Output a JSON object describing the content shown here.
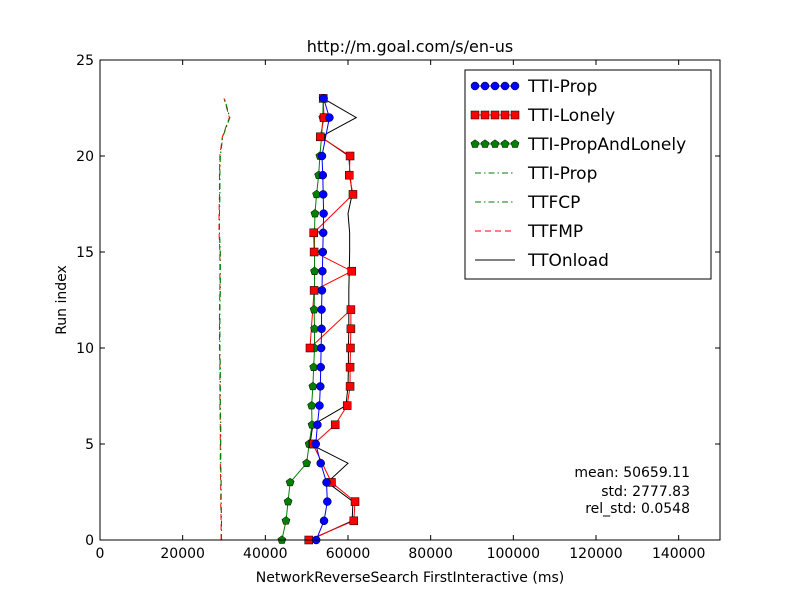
{
  "chart_data": {
    "type": "line",
    "title": "http://m.goal.com/s/en-us",
    "xlabel": "NetworkReverseSearch FirstInteractive (ms)",
    "ylabel": "Run index",
    "xlim": [
      0,
      150000
    ],
    "ylim": [
      0,
      25
    ],
    "x_ticks": [
      0,
      20000,
      40000,
      60000,
      80000,
      100000,
      120000,
      140000
    ],
    "x_tick_labels": [
      "0",
      "20000",
      "40000",
      "60000",
      "80000",
      "100000",
      "120000",
      "140000"
    ],
    "y_ticks": [
      0,
      5,
      10,
      15,
      20,
      25
    ],
    "y_tick_labels": [
      "0",
      "5",
      "10",
      "15",
      "20",
      "25"
    ],
    "grid": false,
    "legend_position": "top-right",
    "series": [
      {
        "name": "TTI-Prop",
        "color": "#0000ff",
        "marker": "circle",
        "line": "solid",
        "x": [
          52300,
          54200,
          55000,
          54800,
          53400,
          52200,
          52600,
          53100,
          53300,
          53400,
          53500,
          53600,
          53600,
          53700,
          53800,
          53900,
          54000,
          54100,
          54000,
          53900,
          53700,
          55500,
          54100
        ],
        "y": [
          0,
          1,
          2,
          3,
          4,
          5,
          6,
          7,
          8,
          9,
          10,
          11,
          12,
          13,
          14,
          15,
          16,
          17,
          18,
          19,
          20,
          22,
          23
        ]
      },
      {
        "name": "TTI-Lonely",
        "color": "#ff0000",
        "marker": "square",
        "line": "solid",
        "x": [
          50500,
          61400,
          61700,
          56000,
          51500,
          51700,
          56900,
          59800,
          60500,
          60500,
          60600,
          60700,
          60700,
          50800,
          51800,
          60900,
          51800,
          51700,
          61200,
          60300,
          60500,
          53300,
          54200,
          54000
        ],
        "y": [
          0,
          1,
          2,
          3,
          5,
          5,
          6,
          7,
          8,
          9,
          10,
          11,
          12,
          10,
          13,
          14,
          15,
          16,
          18,
          19,
          20,
          21,
          22,
          23
        ]
      },
      {
        "name": "TTI-PropAndLonely",
        "color": "#007f00",
        "marker": "pentagon",
        "line": "solid",
        "x": [
          44000,
          45000,
          45500,
          46000,
          50000,
          50600,
          51300,
          51200,
          51500,
          51700,
          51900,
          51900,
          51800,
          51900,
          51900,
          51900,
          51900,
          52000,
          52400,
          52900,
          53200,
          53600,
          53900,
          54000
        ],
        "y": [
          0,
          1,
          2,
          3,
          4,
          5,
          6,
          7,
          8,
          9,
          10,
          11,
          12,
          13,
          14,
          15,
          16,
          17,
          18,
          19,
          20,
          21,
          22,
          23
        ]
      },
      {
        "name": "TTI-Prop",
        "color": "#007f00",
        "marker": "none",
        "line": "dashdot",
        "x": [
          29400,
          29400,
          29300,
          29300,
          29200,
          29200,
          29200,
          29100,
          29100,
          29100,
          29000,
          29000,
          29000,
          29100,
          29100,
          29100,
          28900,
          28900,
          29000,
          29000,
          29100,
          29700,
          31400,
          30100
        ],
        "y": [
          0,
          1,
          2,
          3,
          4,
          5,
          6,
          7,
          8,
          9,
          10,
          11,
          12,
          13,
          14,
          15,
          16,
          17,
          18,
          19,
          20,
          21,
          22,
          23
        ]
      },
      {
        "name": "TTFCP",
        "color": "#007f00",
        "marker": "none",
        "line": "dashdot",
        "x": [
          29400,
          29400,
          29300,
          29300,
          29200,
          29200,
          29200,
          29100,
          29100,
          29100,
          29000,
          29000,
          29000,
          29100,
          29100,
          29100,
          28900,
          28900,
          29000,
          29000,
          29100,
          29700,
          31400,
          30100
        ],
        "y": [
          0,
          1,
          2,
          3,
          4,
          5,
          6,
          7,
          8,
          9,
          10,
          11,
          12,
          13,
          14,
          15,
          16,
          17,
          18,
          19,
          20,
          21,
          22,
          23
        ]
      },
      {
        "name": "TTFMP",
        "color": "#ff0000",
        "marker": "none",
        "line": "dashed",
        "x": [
          29300,
          29300,
          29200,
          29200,
          29100,
          29100,
          29100,
          29000,
          29000,
          29000,
          28900,
          28900,
          28900,
          29000,
          29000,
          29000,
          28800,
          28800,
          28900,
          28900,
          29000,
          29600,
          31300,
          30000
        ],
        "y": [
          0,
          1,
          2,
          3,
          4,
          5,
          6,
          7,
          8,
          9,
          10,
          11,
          12,
          13,
          14,
          15,
          16,
          17,
          18,
          19,
          20,
          21,
          22,
          23
        ]
      },
      {
        "name": "TTOnload",
        "color": "#000000",
        "marker": "none",
        "line": "solid",
        "x": [
          50800,
          61000,
          61200,
          55000,
          60000,
          50800,
          51500,
          59500,
          60000,
          60100,
          60100,
          60200,
          60200,
          60200,
          60300,
          60400,
          60400,
          60000,
          61000,
          60500,
          60200,
          53400,
          62000,
          54000
        ],
        "y": [
          0,
          1,
          2,
          3,
          4,
          5,
          6,
          7,
          8,
          9,
          10,
          11,
          12,
          13,
          14,
          15,
          16,
          17,
          18,
          19,
          20,
          21,
          22,
          23
        ]
      }
    ],
    "annotations": [
      "mean: 50659.11",
      "std: 2777.83",
      "rel_std: 0.0548"
    ]
  }
}
